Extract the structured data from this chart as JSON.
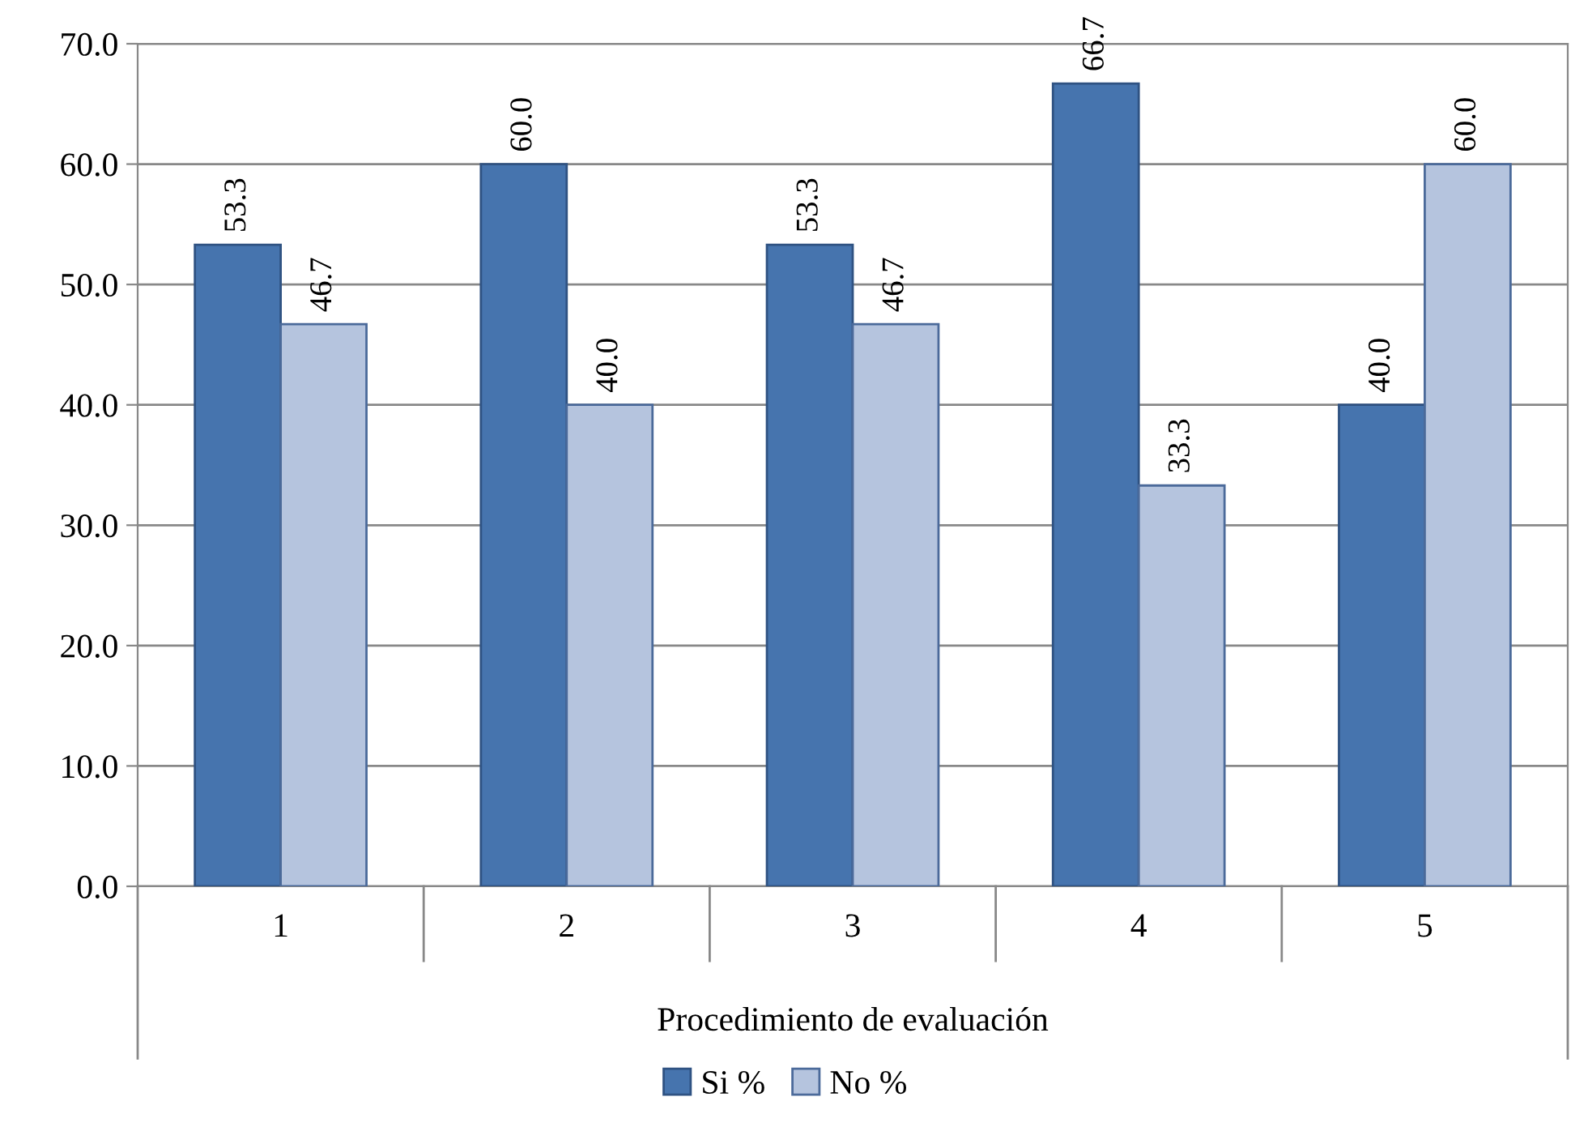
{
  "chart_data": {
    "type": "bar",
    "xlabel": "Procedimiento de evaluación",
    "categories": [
      "1",
      "2",
      "3",
      "4",
      "5"
    ],
    "series": [
      {
        "name": "Si %",
        "color": "#4674ae",
        "values": [
          53.3,
          60.0,
          53.3,
          66.7,
          40.0
        ]
      },
      {
        "name": "No %",
        "color": "#b5c4de",
        "values": [
          46.7,
          40.0,
          46.7,
          33.3,
          60.0
        ]
      }
    ],
    "ylim": [
      0,
      70
    ],
    "yticks": [
      {
        "value": 0,
        "label": "0.0"
      },
      {
        "value": 10,
        "label": "10.0"
      },
      {
        "value": 20,
        "label": "20.0"
      },
      {
        "value": 30,
        "label": "30.0"
      },
      {
        "value": 40,
        "label": "40.0"
      },
      {
        "value": 50,
        "label": "50.0"
      },
      {
        "value": 60,
        "label": "60.0"
      },
      {
        "value": 70,
        "label": "70.0"
      }
    ],
    "value_labels": [
      [
        "53.3",
        "60.0",
        "53.3",
        "66.7",
        "40.0"
      ],
      [
        "46.7",
        "40.0",
        "46.7",
        "33.3",
        "60.0"
      ]
    ],
    "grid": "y",
    "legend": "bottom"
  }
}
